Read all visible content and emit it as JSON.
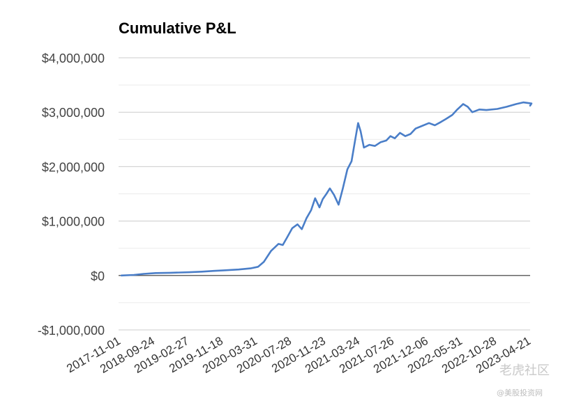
{
  "chart_data": {
    "type": "line",
    "title": "Cumulative P&L",
    "xlabel": "",
    "ylabel": "",
    "ylim": [
      -1000000,
      4000000
    ],
    "y_ticks": [
      4000000,
      3000000,
      2000000,
      1000000,
      0,
      -1000000
    ],
    "y_tick_labels": [
      "$4,000,000",
      "$3,000,000",
      "$2,000,000",
      "$1,000,000",
      "$0",
      "-$1,000,000"
    ],
    "x_tick_labels": [
      "2017-11-01",
      "2018-09-24",
      "2019-02-27",
      "2019-11-18",
      "2020-03-31",
      "2020-07-28",
      "2020-11-23",
      "2021-03-24",
      "2021-07-26",
      "2021-12-06",
      "2022-05-31",
      "2022-10-28",
      "2023-04-21"
    ],
    "grid": true,
    "legend": "none",
    "series": [
      {
        "color": "#4a7ec8",
        "points": [
          [
            "2017-11-01",
            0
          ],
          [
            "2018-03-01",
            10000
          ],
          [
            "2018-06-01",
            30000
          ],
          [
            "2018-09-24",
            45000
          ],
          [
            "2018-12-01",
            50000
          ],
          [
            "2019-02-27",
            60000
          ],
          [
            "2019-06-01",
            70000
          ],
          [
            "2019-09-01",
            85000
          ],
          [
            "2019-11-18",
            95000
          ],
          [
            "2020-01-15",
            110000
          ],
          [
            "2020-03-01",
            130000
          ],
          [
            "2020-03-31",
            160000
          ],
          [
            "2020-04-20",
            250000
          ],
          [
            "2020-05-15",
            450000
          ],
          [
            "2020-06-10",
            580000
          ],
          [
            "2020-06-25",
            560000
          ],
          [
            "2020-07-10",
            700000
          ],
          [
            "2020-07-28",
            870000
          ],
          [
            "2020-08-15",
            940000
          ],
          [
            "2020-08-30",
            850000
          ],
          [
            "2020-09-15",
            1050000
          ],
          [
            "2020-10-01",
            1200000
          ],
          [
            "2020-10-15",
            1420000
          ],
          [
            "2020-10-30",
            1250000
          ],
          [
            "2020-11-10",
            1400000
          ],
          [
            "2020-11-23",
            1500000
          ],
          [
            "2020-12-05",
            1600000
          ],
          [
            "2020-12-20",
            1480000
          ],
          [
            "2021-01-05",
            1300000
          ],
          [
            "2021-01-20",
            1600000
          ],
          [
            "2021-02-05",
            1950000
          ],
          [
            "2021-02-20",
            2100000
          ],
          [
            "2021-03-05",
            2500000
          ],
          [
            "2021-03-15",
            2800000
          ],
          [
            "2021-03-24",
            2650000
          ],
          [
            "2021-04-05",
            2350000
          ],
          [
            "2021-04-25",
            2400000
          ],
          [
            "2021-05-15",
            2380000
          ],
          [
            "2021-06-05",
            2450000
          ],
          [
            "2021-06-25",
            2480000
          ],
          [
            "2021-07-10",
            2560000
          ],
          [
            "2021-07-26",
            2520000
          ],
          [
            "2021-08-15",
            2620000
          ],
          [
            "2021-09-05",
            2560000
          ],
          [
            "2021-09-25",
            2600000
          ],
          [
            "2021-10-15",
            2700000
          ],
          [
            "2021-11-05",
            2740000
          ],
          [
            "2021-12-06",
            2800000
          ],
          [
            "2022-01-05",
            2760000
          ],
          [
            "2022-02-05",
            2820000
          ],
          [
            "2022-03-05",
            2880000
          ],
          [
            "2022-04-05",
            2950000
          ],
          [
            "2022-05-01",
            3050000
          ],
          [
            "2022-05-31",
            3150000
          ],
          [
            "2022-06-20",
            3100000
          ],
          [
            "2022-07-10",
            3000000
          ],
          [
            "2022-08-10",
            3050000
          ],
          [
            "2022-09-10",
            3040000
          ],
          [
            "2022-10-28",
            3060000
          ],
          [
            "2022-12-15",
            3100000
          ],
          [
            "2023-02-01",
            3150000
          ],
          [
            "2023-03-10",
            3180000
          ],
          [
            "2023-04-21",
            3160000
          ],
          [
            "2023-05-15",
            3120000
          ]
        ]
      }
    ]
  },
  "watermark": {
    "logo_text": "老虎社区",
    "sub_text": "@美股投资网"
  }
}
